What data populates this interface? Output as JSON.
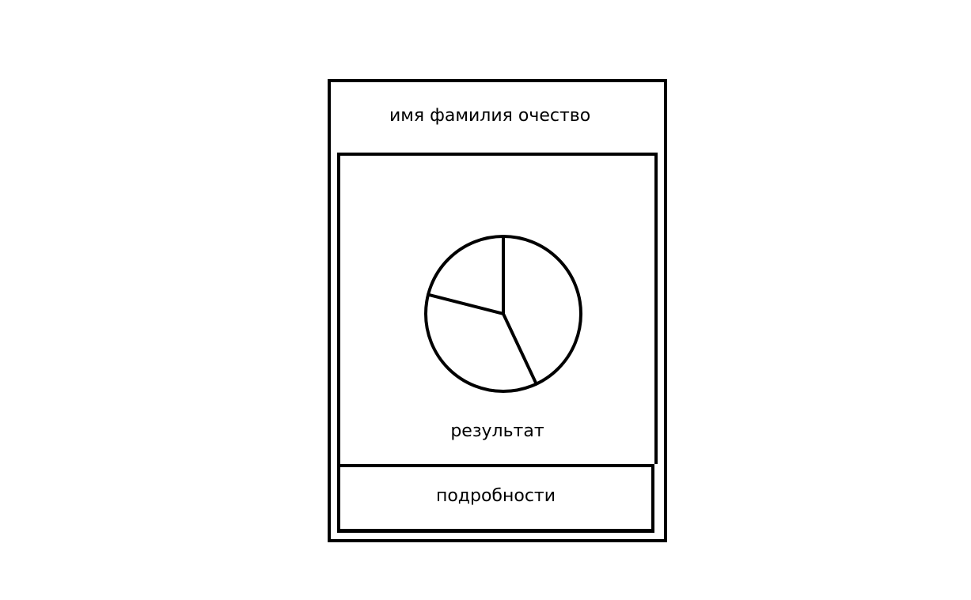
{
  "profile": {
    "full_name": "имя фамилия очество"
  },
  "result": {
    "label": "результат"
  },
  "details": {
    "label": "подробности"
  },
  "chart_data": {
    "type": "pie",
    "title": "",
    "note": "unlabeled sketch pie, values estimated from slice angles",
    "slices": [
      {
        "label": "",
        "value": 43
      },
      {
        "label": "",
        "value": 36
      },
      {
        "label": "",
        "value": 21
      }
    ],
    "colors": {
      "stroke": "#000000",
      "fill": "#ffffff"
    }
  }
}
